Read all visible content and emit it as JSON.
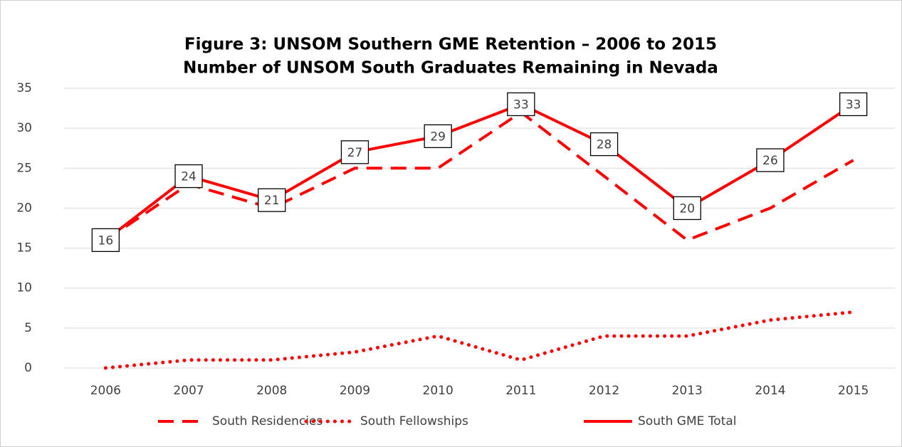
{
  "chart_data": {
    "type": "line",
    "title": "Figure 3:  UNSOM Southern GME Retention – 2006 to 2015",
    "subtitle": "Number of UNSOM South Graduates Remaining in Nevada",
    "categories": [
      "2006",
      "2007",
      "2008",
      "2009",
      "2010",
      "2011",
      "2012",
      "2013",
      "2014",
      "2015"
    ],
    "series": [
      {
        "name": "South Residencies",
        "color": "#ff0000",
        "dash": "dash",
        "values": [
          16,
          23,
          20,
          25,
          25,
          32,
          24,
          16,
          20,
          26
        ]
      },
      {
        "name": "South Fellowships",
        "color": "#ff0000",
        "dash": "dot",
        "values": [
          0,
          1,
          1,
          2,
          4,
          1,
          4,
          4,
          6,
          7
        ]
      },
      {
        "name": "South GME Total",
        "color": "#ff0000",
        "dash": "solid",
        "data_labels": true,
        "values": [
          16,
          24,
          21,
          27,
          29,
          33,
          28,
          20,
          26,
          33
        ]
      }
    ],
    "ylim": [
      0,
      35
    ],
    "yticks": [
      0,
      5,
      10,
      15,
      20,
      25,
      30,
      35
    ],
    "grid": true,
    "legend": "bottom"
  }
}
